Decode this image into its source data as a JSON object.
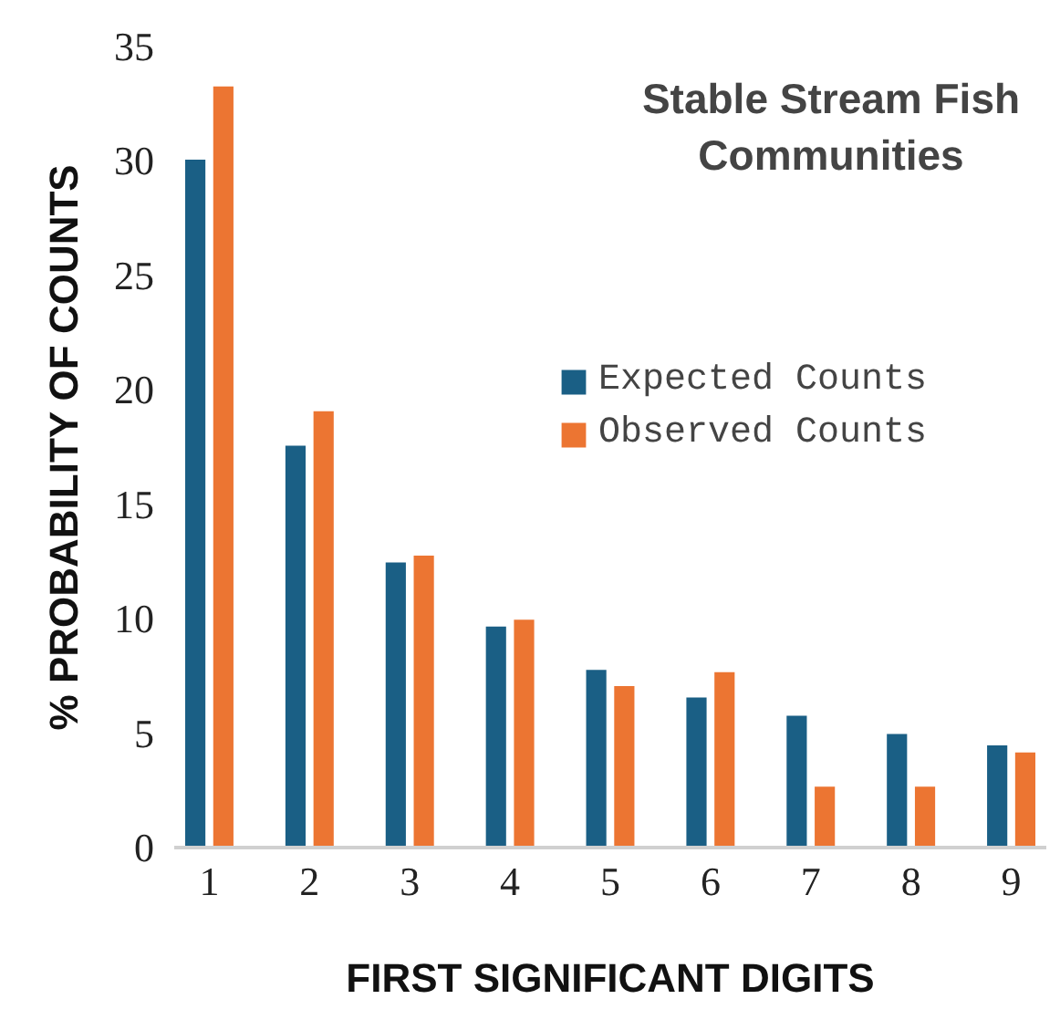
{
  "chart_data": {
    "type": "bar",
    "title": "Stable Stream Fish\nCommunities",
    "xlabel": "FIRST SIGNIFICANT DIGITS",
    "ylabel": "% PROBABILITY OF COUNTS",
    "categories": [
      "1",
      "2",
      "3",
      "4",
      "5",
      "6",
      "7",
      "8",
      "9"
    ],
    "series": [
      {
        "name": "Expected Counts",
        "color": "#1a5f85",
        "values": [
          30.1,
          17.6,
          12.5,
          9.7,
          7.8,
          6.6,
          5.8,
          5.0,
          4.5
        ]
      },
      {
        "name": "Observed Counts",
        "color": "#ec7532",
        "values": [
          33.3,
          19.1,
          12.8,
          10.0,
          7.1,
          7.7,
          2.7,
          2.7,
          4.2
        ]
      }
    ],
    "ylim": [
      0,
      35
    ],
    "yticks": [
      0,
      5,
      10,
      15,
      20,
      25,
      30,
      35
    ],
    "grid": false,
    "legend": "right"
  }
}
